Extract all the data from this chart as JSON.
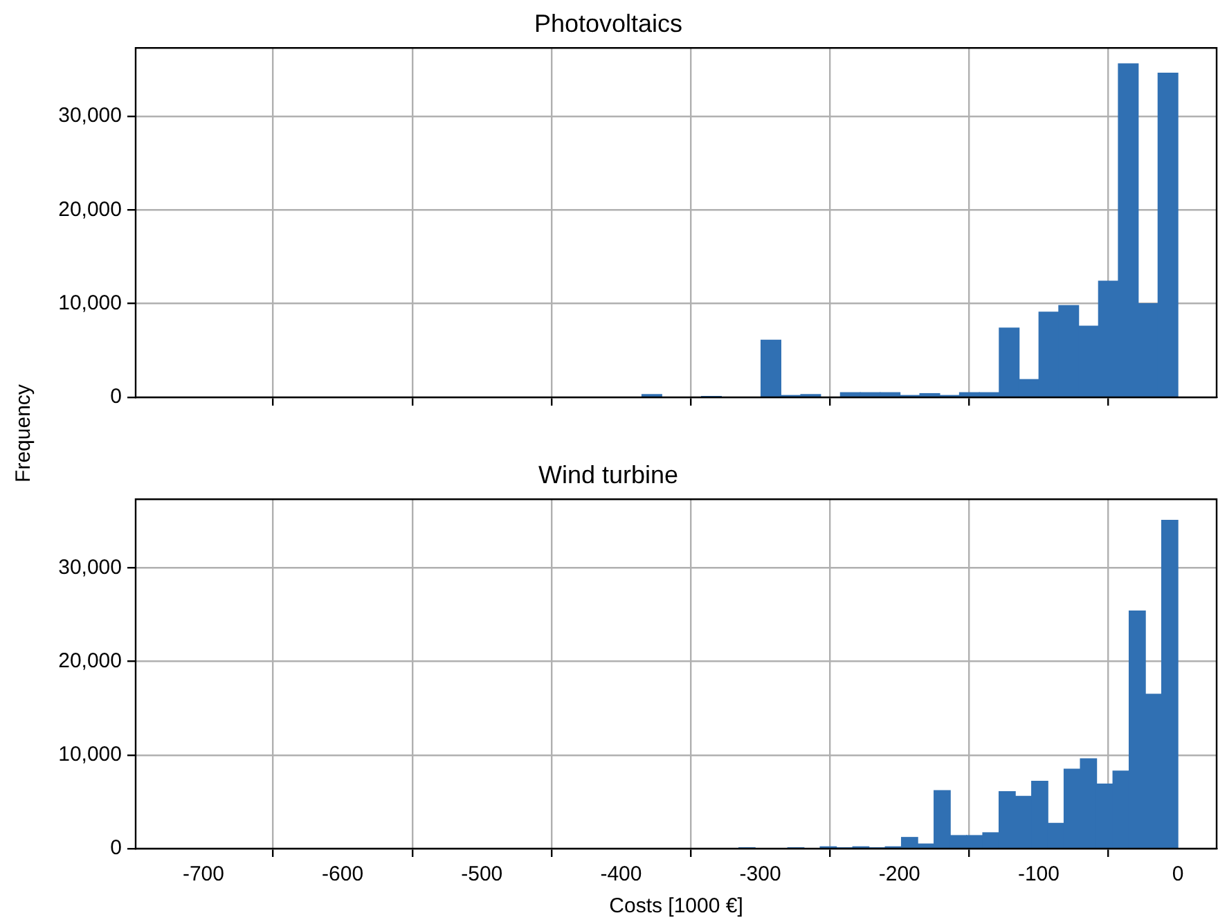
{
  "chart_data": [
    {
      "type": "histogram",
      "title": "Photovoltaics",
      "ylabel": "Frequency",
      "color": "#3070b3",
      "bins": [
        -385.0,
        -370.8,
        -356.5,
        -342.2,
        -328.0,
        -313.7,
        -299.5,
        -285.2,
        -270.9,
        -256.7,
        -242.4,
        -228.2,
        -213.9,
        -199.6,
        -185.4,
        -171.1,
        -156.9,
        -142.6,
        -128.3,
        -114.1,
        -99.8,
        -85.6,
        -71.3,
        -57.0,
        -42.8,
        -28.5,
        -14.3,
        0
      ],
      "values": [
        300,
        0,
        0,
        100,
        0,
        0,
        6100,
        200,
        300,
        0,
        500,
        500,
        500,
        200,
        400,
        200,
        500,
        500,
        7400,
        1900,
        9100,
        9800,
        7600,
        12400,
        35600,
        10000,
        34600
      ],
      "xlim": [
        -748.7,
        27.8
      ],
      "xticks": [
        -700,
        -600,
        -500,
        -400,
        -300,
        -200,
        -100,
        0
      ],
      "ylim": [
        0,
        37300
      ],
      "yticks": [
        0,
        {
          "value": 10000,
          "label": "10,000"
        },
        {
          "value": 20000,
          "label": "20,000"
        },
        {
          "value": 30000,
          "label": "30,000"
        }
      ],
      "grid": true,
      "tick_labels": "y"
    },
    {
      "type": "histogram",
      "title": "Wind turbine",
      "xlabel": "Costs [1000 €]",
      "color": "#3070b3",
      "bins": [
        -315.4,
        -303.7,
        -292.0,
        -280.3,
        -268.6,
        -257.0,
        -245.3,
        -233.6,
        -221.9,
        -210.2,
        -198.6,
        -186.9,
        -175.2,
        -163.5,
        -151.8,
        -140.2,
        -128.5,
        -116.8,
        -105.1,
        -93.4,
        -81.8,
        -70.1,
        -58.4,
        -46.7,
        -35.0,
        -23.4,
        -11.7,
        0
      ],
      "values": [
        100,
        0,
        0,
        100,
        0,
        200,
        100,
        200,
        100,
        200,
        1200,
        500,
        6200,
        1400,
        1400,
        1700,
        6100,
        5600,
        7200,
        2700,
        8500,
        9600,
        6900,
        8300,
        25400,
        16500,
        35100
      ],
      "xlim": [
        -748.7,
        27.8
      ],
      "xticks": [
        -700,
        -600,
        -500,
        -400,
        -300,
        -200,
        -100,
        0
      ],
      "ylim": [
        0,
        37350
      ],
      "yticks": [
        0,
        {
          "value": 10000,
          "label": "10,000"
        },
        {
          "value": 20000,
          "label": "20,000"
        },
        {
          "value": 30000,
          "label": "30,000"
        }
      ],
      "grid": true
    }
  ]
}
